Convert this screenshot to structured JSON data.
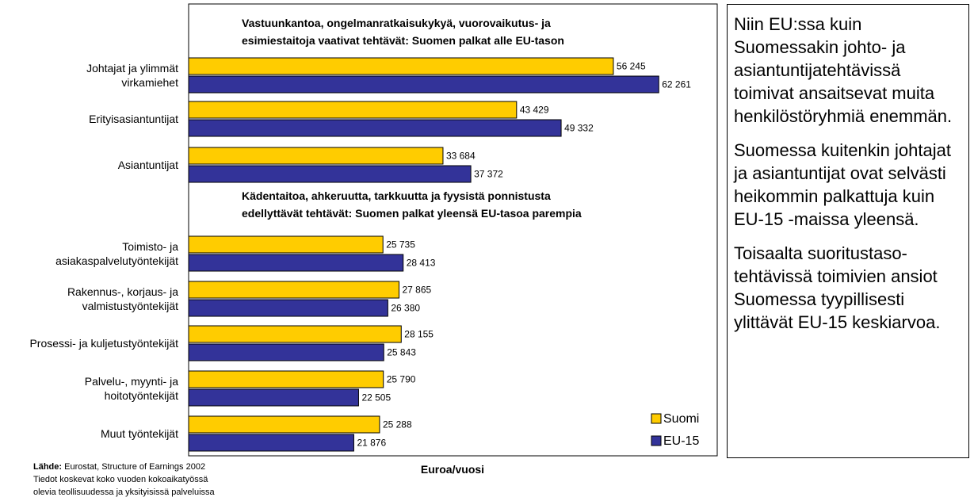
{
  "chart_data": {
    "type": "hbar",
    "categories": [
      "Johtajat ja ylimmät\nvirkamiehet",
      "Erityisasiantuntijat",
      "Asiantuntijat",
      "Toimisto- ja\nasiakaspalvelutyöntekijät",
      "Rakennus-, korjaus- ja\nvalmistustyöntekijät",
      "Prosessi- ja kuljetustyöntekijät",
      "Palvelu-, myynti- ja\nhoitotyöntekijät",
      "Muut työntekijät"
    ],
    "series": [
      {
        "name": "Suomi",
        "color": "#ffcc00",
        "values": [
          56245,
          43429,
          33684,
          25735,
          27865,
          28155,
          25790,
          25288
        ],
        "value_labels": [
          "56 245",
          "43 429",
          "33 684",
          "25 735",
          "27 865",
          "28 155",
          "25 790",
          "25 288"
        ]
      },
      {
        "name": "EU-15",
        "color": "#333399",
        "values": [
          62261,
          49332,
          37372,
          28413,
          26380,
          25843,
          22505,
          21876
        ],
        "value_labels": [
          "62 261",
          "49 332",
          "37 372",
          "28 413",
          "26 380",
          "25 843",
          "22 505",
          "21 876"
        ]
      }
    ],
    "xlim": [
      0,
      70000
    ],
    "x_label": "Euroa/vuosi",
    "legend": "lower right",
    "annotations": [
      "Vastuunkantoa, ongelmanratkaisukykyä, vuorovaikutus- ja\nesimiestaitoja vaativat tehtävät: Suomen palkat alle EU-tason",
      "Kädentaitoa, ahkeruutta, tarkkuutta  ja fyysistä ponnistusta\nedellyttävät tehtävät: Suomen palkat yleensä EU-tasoa parempia"
    ],
    "source_label": "Lähde:",
    "source": "Eurostat, Structure of Earnings 2002",
    "notes": [
      "Tiedot koskevat koko vuoden kokoaikatyössä",
      "olevia teollisuudessa ja yksityisissä palveluissa"
    ]
  },
  "side_text": [
    "Niin EU:ssa kuin Suomessakin johto- ja asiantuntijatehtävissä toimivat ansaitsevat muita henkilöstöryhmiä enemmän.",
    "Suomessa kuitenkin johtajat  ja asiantuntijat ovat selvästi heikommin palkattuja kuin EU-15 -maissa yleensä.",
    "Toisaalta suoritustaso-tehtävissä toimivien ansiot Suomessa tyypillisesti ylittävät EU-15 keskiarvoa."
  ]
}
